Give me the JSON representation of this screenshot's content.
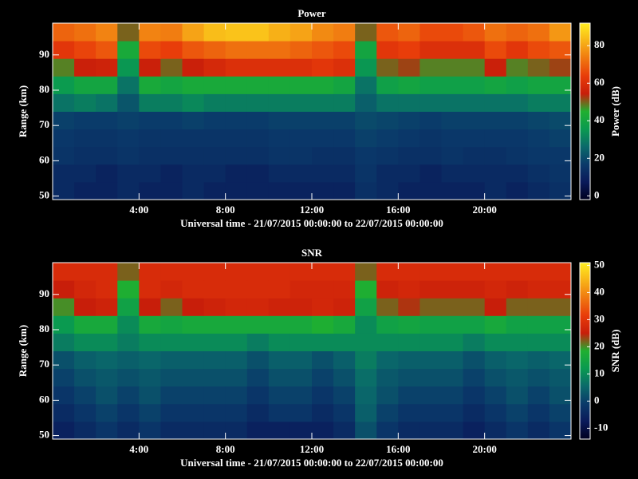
{
  "chart_data": [
    {
      "type": "heatmap",
      "title": "Power",
      "xlabel": "Universal time - 21/07/2015 00:00:00 to 22/07/2015 00:00:00",
      "ylabel": "Range (km)",
      "zlabel": "Power (dB)",
      "xlim": [
        0,
        24
      ],
      "ylim": [
        49,
        99
      ],
      "zlim": [
        -2,
        92
      ],
      "xticks": [
        {
          "value": 4,
          "label": "4:00"
        },
        {
          "value": 8,
          "label": "8:00"
        },
        {
          "value": 12,
          "label": "12:00"
        },
        {
          "value": 16,
          "label": "16:00"
        },
        {
          "value": 20,
          "label": "20:00"
        }
      ],
      "yticks": [
        50,
        60,
        70,
        80,
        90
      ],
      "zticks": [
        0,
        20,
        40,
        60,
        80
      ],
      "colormap": [
        "#000020",
        "#0a1a5a",
        "#0a3a6a",
        "#0a6a6a",
        "#0a9a50",
        "#20b030",
        "#c81e0a",
        "#e83c0a",
        "#f07810",
        "#f8b418",
        "#ffee20"
      ],
      "xbins": [
        0,
        1,
        2,
        3,
        4,
        5,
        6,
        7,
        8,
        9,
        10,
        11,
        12,
        13,
        14,
        15,
        16,
        17,
        18,
        19,
        20,
        21,
        22,
        23,
        24
      ],
      "ybins": [
        49,
        54,
        59,
        64,
        69,
        74,
        79,
        84,
        89,
        94,
        99
      ],
      "values": [
        [
          12,
          10,
          10,
          12,
          10,
          10,
          12,
          10,
          10,
          10,
          10,
          10,
          10,
          10,
          14,
          12,
          10,
          10,
          10,
          10,
          12,
          10,
          12,
          14
        ],
        [
          12,
          12,
          10,
          12,
          12,
          10,
          12,
          12,
          10,
          10,
          12,
          12,
          12,
          12,
          15,
          12,
          12,
          10,
          12,
          12,
          12,
          12,
          14,
          15
        ],
        [
          15,
          14,
          14,
          15,
          14,
          14,
          14,
          14,
          14,
          14,
          15,
          15,
          14,
          14,
          16,
          15,
          14,
          14,
          15,
          14,
          14,
          15,
          16,
          16
        ],
        [
          16,
          15,
          15,
          16,
          15,
          15,
          15,
          15,
          15,
          15,
          16,
          16,
          16,
          16,
          18,
          17,
          16,
          15,
          16,
          16,
          16,
          16,
          17,
          18
        ],
        [
          18,
          17,
          17,
          18,
          17,
          17,
          18,
          17,
          17,
          17,
          18,
          18,
          18,
          18,
          20,
          19,
          18,
          17,
          18,
          18,
          18,
          18,
          19,
          20
        ],
        [
          28,
          30,
          28,
          22,
          30,
          30,
          32,
          30,
          30,
          30,
          30,
          30,
          30,
          30,
          24,
          28,
          28,
          28,
          28,
          28,
          28,
          28,
          30,
          30
        ],
        [
          36,
          40,
          40,
          28,
          42,
          40,
          42,
          42,
          42,
          42,
          42,
          42,
          42,
          40,
          28,
          38,
          40,
          38,
          38,
          38,
          40,
          38,
          40,
          40
        ],
        [
          48,
          55,
          56,
          35,
          55,
          50,
          55,
          58,
          60,
          60,
          60,
          60,
          62,
          60,
          35,
          50,
          52,
          48,
          48,
          48,
          55,
          48,
          50,
          52
        ],
        [
          62,
          65,
          68,
          42,
          66,
          64,
          68,
          70,
          72,
          72,
          72,
          70,
          68,
          66,
          40,
          62,
          64,
          60,
          60,
          60,
          66,
          62,
          66,
          68
        ],
        [
          70,
          72,
          75,
          50,
          75,
          74,
          80,
          84,
          85,
          85,
          82,
          80,
          76,
          74,
          50,
          68,
          70,
          66,
          66,
          68,
          72,
          70,
          72,
          78
        ]
      ]
    },
    {
      "type": "heatmap",
      "title": "SNR",
      "xlabel": "Universal time - 21/07/2015 00:00:00 to 22/07/2015 00:00:00",
      "ylabel": "Range (km)",
      "zlabel": "SNR (dB)",
      "xlim": [
        0,
        24
      ],
      "ylim": [
        49,
        99
      ],
      "zlim": [
        -14,
        51
      ],
      "xticks": [
        {
          "value": 4,
          "label": "4:00"
        },
        {
          "value": 8,
          "label": "8:00"
        },
        {
          "value": 12,
          "label": "12:00"
        },
        {
          "value": 16,
          "label": "16:00"
        },
        {
          "value": 20,
          "label": "20:00"
        }
      ],
      "yticks": [
        50,
        60,
        70,
        80,
        90
      ],
      "zticks": [
        -10,
        0,
        10,
        20,
        30,
        40,
        50
      ],
      "colormap": [
        "#000020",
        "#0a1a5a",
        "#0a3a6a",
        "#0a6a6a",
        "#0a9a50",
        "#20b030",
        "#c81e0a",
        "#e83c0a",
        "#f07810",
        "#f8b418",
        "#ffee20"
      ],
      "xbins": [
        0,
        1,
        2,
        3,
        4,
        5,
        6,
        7,
        8,
        9,
        10,
        11,
        12,
        13,
        14,
        15,
        16,
        17,
        18,
        19,
        20,
        21,
        22,
        23,
        24
      ],
      "ybins": [
        49,
        54,
        59,
        64,
        69,
        74,
        79,
        84,
        89,
        94,
        99
      ],
      "values": [
        [
          -6,
          -4,
          -2,
          -4,
          -2,
          -4,
          -4,
          -4,
          -4,
          -6,
          -6,
          -6,
          -6,
          -4,
          2,
          -2,
          -4,
          -4,
          -4,
          -6,
          -4,
          -2,
          -4,
          -2
        ],
        [
          -4,
          -2,
          0,
          -2,
          0,
          -2,
          -2,
          -2,
          -2,
          -4,
          -2,
          -2,
          -4,
          -2,
          4,
          0,
          -2,
          -2,
          -2,
          -4,
          -2,
          0,
          -2,
          0
        ],
        [
          -2,
          0,
          2,
          0,
          2,
          0,
          0,
          0,
          0,
          -2,
          0,
          0,
          -2,
          0,
          5,
          2,
          0,
          0,
          0,
          -2,
          0,
          2,
          0,
          2
        ],
        [
          0,
          2,
          3,
          2,
          3,
          2,
          2,
          2,
          2,
          0,
          2,
          2,
          0,
          2,
          6,
          3,
          2,
          2,
          2,
          0,
          2,
          3,
          2,
          3
        ],
        [
          2,
          4,
          5,
          4,
          5,
          4,
          4,
          4,
          4,
          2,
          4,
          4,
          2,
          4,
          8,
          5,
          4,
          4,
          4,
          2,
          4,
          5,
          4,
          5
        ],
        [
          8,
          10,
          10,
          8,
          10,
          10,
          10,
          10,
          10,
          8,
          10,
          10,
          10,
          10,
          10,
          10,
          10,
          10,
          10,
          8,
          10,
          10,
          10,
          10
        ],
        [
          12,
          16,
          16,
          10,
          16,
          15,
          16,
          16,
          16,
          16,
          16,
          16,
          18,
          16,
          10,
          14,
          15,
          14,
          14,
          14,
          16,
          14,
          14,
          14
        ],
        [
          20,
          25,
          26,
          14,
          25,
          22,
          25,
          26,
          27,
          27,
          26,
          26,
          27,
          26,
          14,
          22,
          24,
          22,
          22,
          22,
          25,
          22,
          22,
          22
        ],
        [
          25,
          27,
          28,
          18,
          28,
          27,
          28,
          28,
          28,
          28,
          28,
          27,
          27,
          27,
          18,
          26,
          27,
          26,
          26,
          26,
          27,
          26,
          27,
          27
        ],
        [
          28,
          28,
          28,
          22,
          28,
          28,
          28,
          28,
          28,
          28,
          28,
          28,
          28,
          28,
          22,
          28,
          28,
          28,
          28,
          28,
          28,
          28,
          28,
          28
        ]
      ]
    }
  ]
}
